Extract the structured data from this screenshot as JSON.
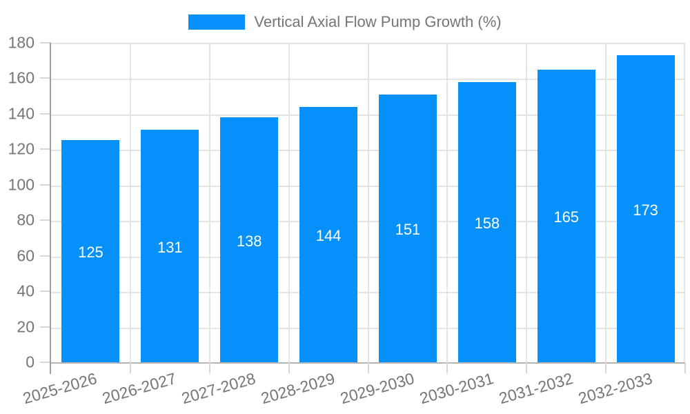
{
  "legend": {
    "label": "Vertical Axial Flow Pump Growth (%)"
  },
  "chart_data": {
    "type": "bar",
    "title": "Vertical Axial Flow Pump Growth (%)",
    "series_name": "Vertical Axial Flow Pump Growth (%)",
    "categories": [
      "2025-2026",
      "2026-2027",
      "2027-2028",
      "2028-2029",
      "2029-2030",
      "2030-2031",
      "2031-2032",
      "2032-2033"
    ],
    "values": [
      125,
      131,
      138,
      144,
      151,
      158,
      165,
      173
    ],
    "bar_value_labels": [
      "125",
      "131",
      "138",
      "144",
      "151",
      "158",
      "165",
      "173"
    ],
    "xlabel": "",
    "ylabel": "",
    "ylim": [
      0,
      180
    ],
    "yticks": [
      0,
      20,
      40,
      60,
      80,
      100,
      120,
      140,
      160,
      180
    ],
    "grid": true,
    "legend_position": "top-center",
    "value_label_position": "center-of-bar"
  },
  "colors": {
    "bar": "#0690fa",
    "tick_text": "#757575",
    "legend_text": "#757575",
    "value_text": "#ffffff",
    "gridline": "#e4e4e4",
    "plot_border": "#e4e4e4",
    "y_axis_line": "#9e9e9e",
    "x_axis_line": "#b4b4b4",
    "tick_mark": "#d6d6d6",
    "background": "#ffffff"
  }
}
